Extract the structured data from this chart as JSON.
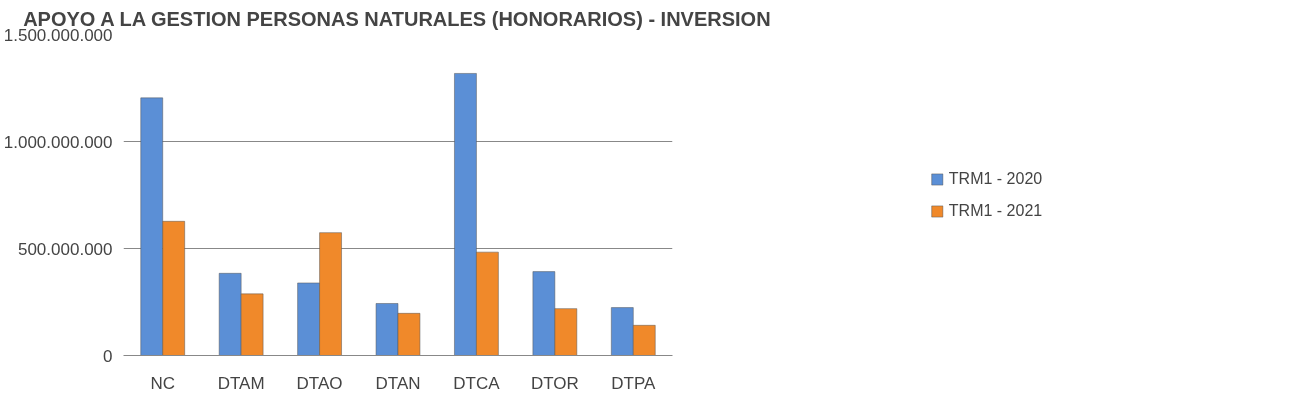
{
  "chart_data": {
    "type": "bar",
    "title": "APOYO A LA GESTION PERSONAS NATURALES (HONORARIOS) - INVERSION",
    "categories": [
      "NC",
      "DTAM",
      "DTAO",
      "DTAN",
      "DTCA",
      "DTOR",
      "DTPA"
    ],
    "series": [
      {
        "name": "TRM1 - 2020",
        "color": "#5b8fd6",
        "values": [
          1204000000,
          384000000,
          339000000,
          243000000,
          1318000000,
          392000000,
          224000000
        ]
      },
      {
        "name": "TRM1 - 2021",
        "color": "#f0892a",
        "values": [
          627000000,
          288000000,
          574000000,
          197000000,
          483000000,
          219000000,
          141000000
        ]
      }
    ],
    "ylim": [
      0,
      1500000000
    ],
    "yticks": [
      {
        "value": 0,
        "label": "0"
      },
      {
        "value": 500000000,
        "label": "500.000.000"
      },
      {
        "value": 1000000000,
        "label": "1.000.000.000"
      },
      {
        "value": 1500000000,
        "label": "1.500.000.000"
      }
    ],
    "grid": "y",
    "legend": "right"
  }
}
